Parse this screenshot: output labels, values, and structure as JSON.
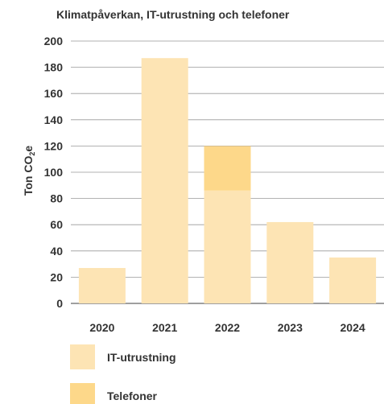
{
  "chart_data": {
    "type": "bar",
    "stacked": true,
    "title": "Klimatpåverkan, IT-utrustning och telefoner",
    "ylabel_main": "Ton CO",
    "ylabel_sub": "2",
    "ylabel_suffix": "e",
    "xlabel": "",
    "categories": [
      "2020",
      "2021",
      "2022",
      "2023",
      "2024"
    ],
    "ylim": [
      0,
      200
    ],
    "yticks": [
      0,
      20,
      40,
      60,
      80,
      100,
      120,
      140,
      160,
      180,
      200
    ],
    "grid": true,
    "legend_position": "bottom-left",
    "series": [
      {
        "name": "IT-utrustning",
        "color": "#fde4b4",
        "values": [
          27,
          187,
          86,
          62,
          35
        ]
      },
      {
        "name": "Telefoner",
        "color": "#fdd88a",
        "values": [
          0,
          0,
          34,
          0,
          0
        ]
      }
    ]
  }
}
